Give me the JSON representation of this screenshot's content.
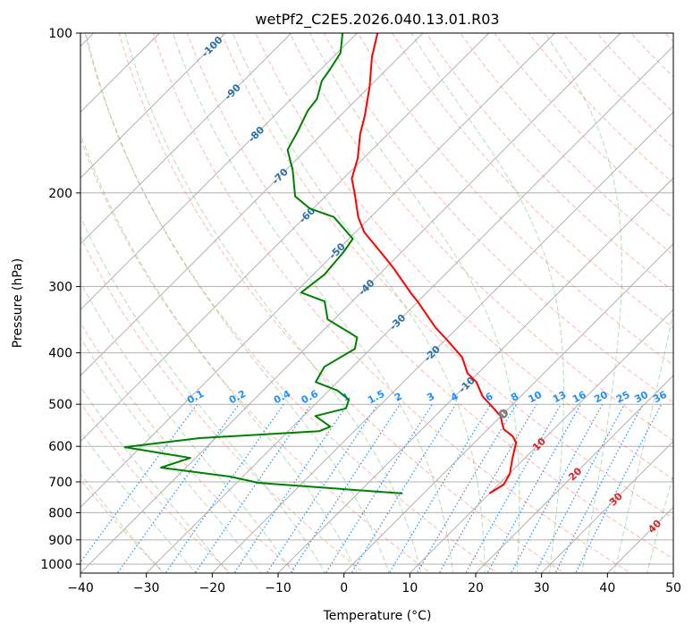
{
  "chart_data": {
    "type": "line",
    "subtype": "skew-t log-p",
    "title": "wetPf2_C2E5.2026.040.13.01.R03",
    "xlabel": "Temperature (°C)",
    "ylabel": "Pressure (hPa)",
    "xlim": [
      -40,
      50
    ],
    "ylim": [
      1050,
      100
    ],
    "x_ticks": [
      "−40",
      "−30",
      "−20",
      "−10",
      "0",
      "10",
      "20",
      "30",
      "40",
      "50"
    ],
    "x_tick_values": [
      -40,
      -30,
      -20,
      -10,
      0,
      10,
      20,
      30,
      40,
      50
    ],
    "y_ticks": [
      "100",
      "200",
      "300",
      "400",
      "500",
      "600",
      "700",
      "800",
      "900",
      "1000"
    ],
    "y_tick_values": [
      100,
      200,
      300,
      400,
      500,
      600,
      700,
      800,
      900,
      1000
    ],
    "grid": true,
    "colors": {
      "temperature": "#ff0000",
      "dewpoint": "#008000",
      "isotherm": "#b0b0b0",
      "dry_adiabat": "#ff6347",
      "moist_adiabat": "#2ca02c",
      "mixing_ratio": "#1e90ff",
      "isotherm_label_cold": "#2a6fad",
      "isotherm_label_warm": "#d62728",
      "lcl": "#808080"
    },
    "series": [
      {
        "name": "Temperature",
        "unit": "°C",
        "points": [
          [
            736,
            10.0
          ],
          [
            708,
            10.8
          ],
          [
            676,
            10.1
          ],
          [
            633,
            8.2
          ],
          [
            590,
            6.3
          ],
          [
            574,
            4.8
          ],
          [
            557,
            2.4
          ],
          [
            526,
            -0.1
          ],
          [
            511,
            -2.0
          ],
          [
            483,
            -5.8
          ],
          [
            454,
            -8.9
          ],
          [
            437,
            -11.6
          ],
          [
            408,
            -14.8
          ],
          [
            378,
            -19.8
          ],
          [
            359,
            -23.3
          ],
          [
            320,
            -30.1
          ],
          [
            309,
            -32.3
          ],
          [
            277,
            -38.8
          ],
          [
            267,
            -41.1
          ],
          [
            237,
            -48.7
          ],
          [
            222,
            -51.9
          ],
          [
            201,
            -55.9
          ],
          [
            188,
            -58.7
          ],
          [
            172,
            -60.9
          ],
          [
            155,
            -64.2
          ],
          [
            143,
            -66.3
          ],
          [
            126,
            -70.0
          ],
          [
            111,
            -74.1
          ],
          [
            100,
            -76.9
          ]
        ]
      },
      {
        "name": "Dewpoint",
        "unit": "°C",
        "points": [
          [
            736,
            -3.2
          ],
          [
            703,
            -26.6
          ],
          [
            684,
            -32.0
          ],
          [
            658,
            -43.8
          ],
          [
            631,
            -40.8
          ],
          [
            602,
            -52.4
          ],
          [
            579,
            -42.4
          ],
          [
            562,
            -25.3
          ],
          [
            551,
            -24.3
          ],
          [
            526,
            -28.2
          ],
          [
            509,
            -24.7
          ],
          [
            490,
            -25.6
          ],
          [
            471,
            -28.7
          ],
          [
            454,
            -33.3
          ],
          [
            425,
            -34.3
          ],
          [
            393,
            -32.4
          ],
          [
            374,
            -33.8
          ],
          [
            346,
            -41.0
          ],
          [
            320,
            -44.2
          ],
          [
            308,
            -49.1
          ],
          [
            285,
            -48.3
          ],
          [
            259,
            -48.8
          ],
          [
            244,
            -49.4
          ],
          [
            222,
            -55.6
          ],
          [
            214,
            -60.5
          ],
          [
            203,
            -64.6
          ],
          [
            181,
            -69.0
          ],
          [
            166,
            -72.8
          ],
          [
            153,
            -74.1
          ],
          [
            140,
            -75.7
          ],
          [
            133,
            -76.1
          ],
          [
            123,
            -78.1
          ],
          [
            117,
            -78.6
          ],
          [
            109,
            -79.5
          ],
          [
            100,
            -82.2
          ]
        ]
      }
    ],
    "lcl": {
      "pressure": 521,
      "temperature": 0,
      "marker": "open-circle"
    },
    "isotherm_labels": [
      "-100",
      "-90",
      "-80",
      "-70",
      "-60",
      "-50",
      "-40",
      "-30",
      "-20",
      "-10",
      "0",
      "10",
      "20",
      "30",
      "40"
    ],
    "isotherm_label_values": [
      -100,
      -90,
      -80,
      -70,
      -60,
      -50,
      -40,
      -30,
      -20,
      -10,
      0,
      10,
      20,
      30,
      40
    ],
    "mixing_ratio_labels": [
      "0.1",
      "0.2",
      "0.4",
      "0.6",
      "1",
      "1.5",
      "2",
      "3",
      "4",
      "6",
      "8",
      "10",
      "13",
      "16",
      "20",
      "25",
      "30",
      "36"
    ],
    "mixing_ratio_values": [
      0.1,
      0.2,
      0.4,
      0.6,
      1,
      1.5,
      2,
      3,
      4,
      6,
      8,
      10,
      13,
      16,
      20,
      25,
      30,
      36
    ],
    "mixing_ratio_top_hPa": 500,
    "dry_adiabat_theta_K": [
      243.15,
      473.15,
      10
    ],
    "moist_adiabat_start_C": [
      -30,
      45,
      5
    ]
  }
}
